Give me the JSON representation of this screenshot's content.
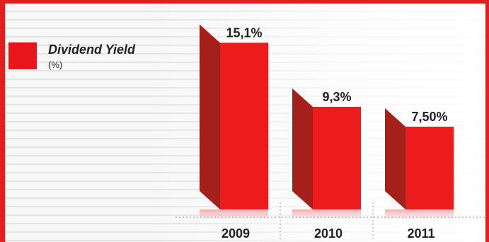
{
  "legend": {
    "label": "Dividend Yield",
    "unit": "(%)"
  },
  "colors": {
    "bar_front": "#ed1c1c",
    "bar_side": "#a6201b",
    "frame": "#e01f1f"
  },
  "chart_data": {
    "type": "bar",
    "categories": [
      "2009",
      "2010",
      "2011"
    ],
    "values": [
      15.1,
      9.3,
      7.5
    ],
    "data_labels": [
      "15,1%",
      "9,3%",
      "7,50%"
    ],
    "title": "",
    "xlabel": "",
    "ylabel": "",
    "ylim": [
      0,
      16
    ],
    "grid": false,
    "legend": "top-left"
  }
}
